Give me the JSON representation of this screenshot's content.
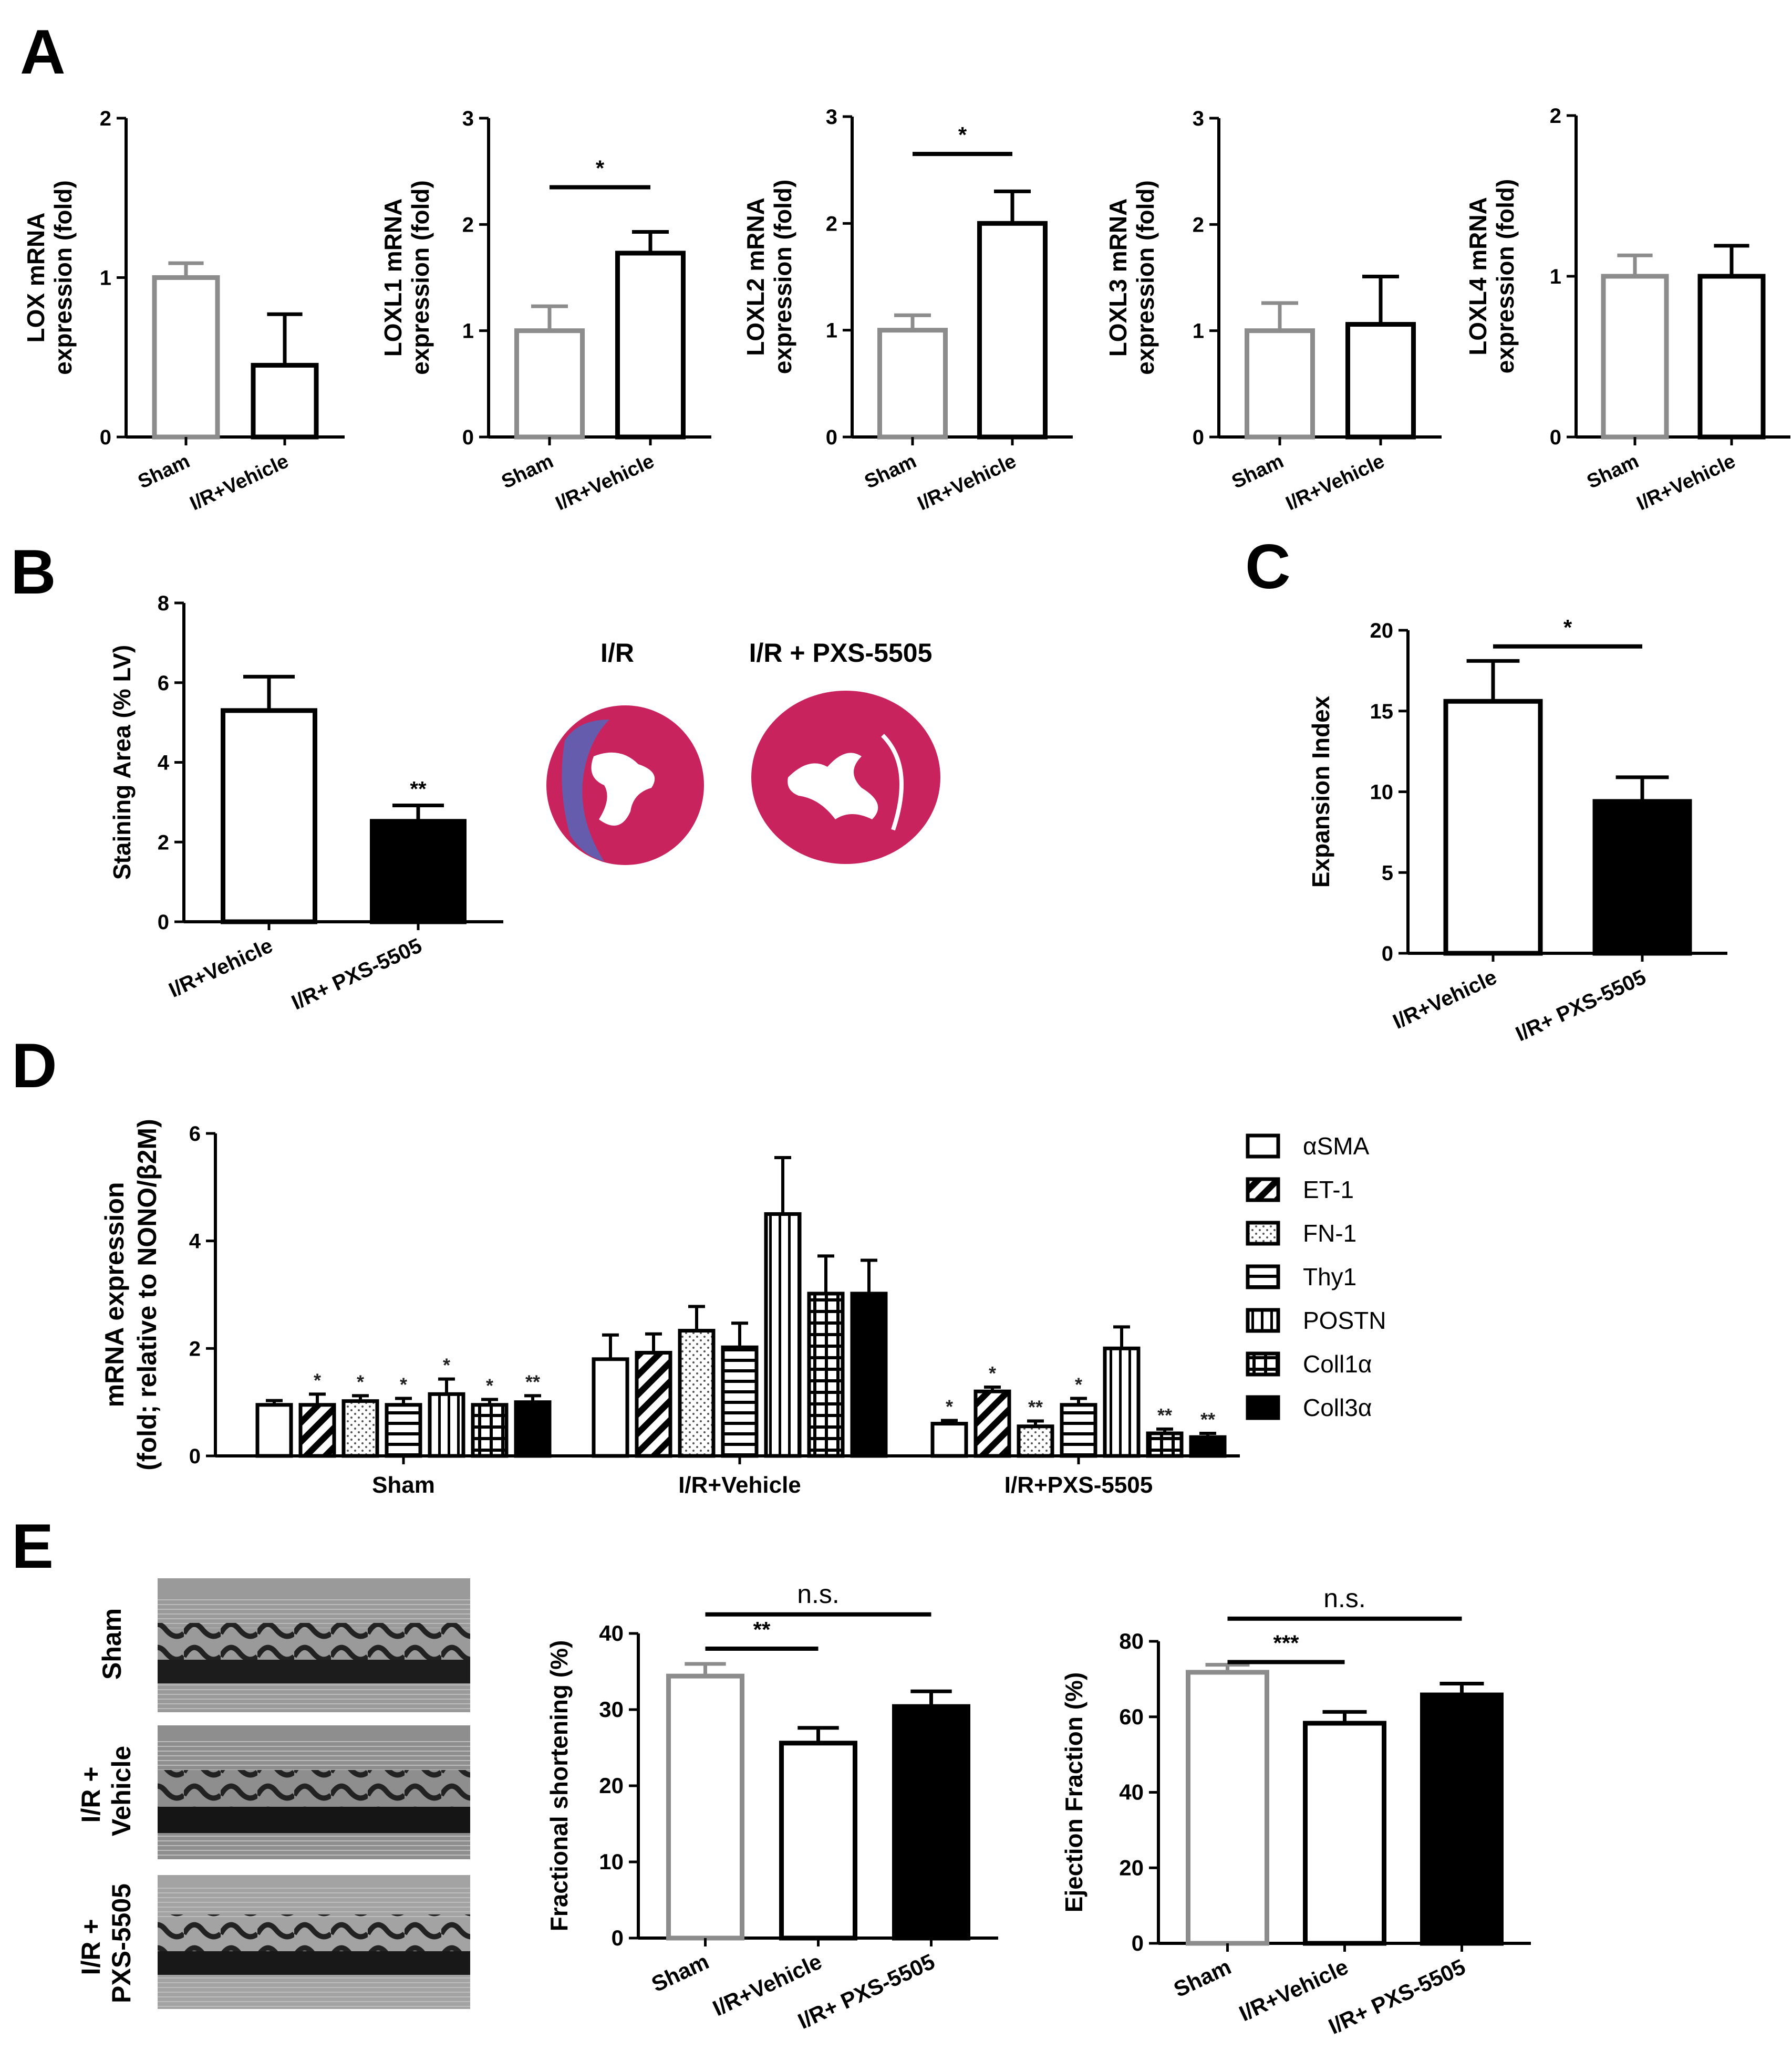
{
  "panel_letters": [
    "A",
    "B",
    "C",
    "D",
    "E"
  ],
  "colors": {
    "sham_gray": "#8c8c8c",
    "black": "#000000",
    "white": "#ffffff",
    "muscle": "#c9235d",
    "fibrosis": "#5566bb"
  },
  "images": {
    "heart_labels": [
      "I/R",
      "I/R + PXS-5505"
    ],
    "echo_labels": [
      [
        "Sham"
      ],
      [
        "I/R +",
        "Vehicle"
      ],
      [
        "I/R +",
        "PXS-5505"
      ]
    ]
  },
  "chart_data": [
    {
      "id": "A1",
      "type": "bar",
      "ylabel": [
        "LOX mRNA",
        "expression (fold)"
      ],
      "categories": [
        "Sham",
        "I/R+Vehicle"
      ],
      "values": [
        1.0,
        0.45
      ],
      "errors": [
        0.09,
        0.32
      ],
      "bar_styles": [
        "gray",
        "black"
      ],
      "yticks": [
        0,
        1,
        2
      ],
      "ylim": [
        0,
        2
      ],
      "sig": []
    },
    {
      "id": "A2",
      "type": "bar",
      "ylabel": [
        "LOXL1 mRNA",
        "expression (fold)"
      ],
      "categories": [
        "Sham",
        "I/R+Vehicle"
      ],
      "values": [
        1.0,
        1.73
      ],
      "errors": [
        0.23,
        0.2
      ],
      "bar_styles": [
        "gray",
        "black"
      ],
      "yticks": [
        0,
        1,
        2,
        3
      ],
      "ylim": [
        0,
        3
      ],
      "sig": [
        {
          "from": 0,
          "to": 1,
          "label": "*",
          "at": 2.35
        }
      ]
    },
    {
      "id": "A3",
      "type": "bar",
      "ylabel": [
        "LOXL2 mRNA",
        "expression (fold)"
      ],
      "categories": [
        "Sham",
        "I/R+Vehicle"
      ],
      "values": [
        1.0,
        2.0
      ],
      "errors": [
        0.14,
        0.3
      ],
      "bar_styles": [
        "gray",
        "black"
      ],
      "yticks": [
        0,
        1,
        2,
        3
      ],
      "ylim": [
        0,
        3
      ],
      "sig": [
        {
          "from": 0,
          "to": 1,
          "label": "*",
          "at": 2.65
        }
      ]
    },
    {
      "id": "A4",
      "type": "bar",
      "ylabel": [
        "LOXL3 mRNA",
        "expression (fold)"
      ],
      "categories": [
        "Sham",
        "I/R+Vehicle"
      ],
      "values": [
        1.0,
        1.06
      ],
      "errors": [
        0.26,
        0.45
      ],
      "bar_styles": [
        "gray",
        "black"
      ],
      "yticks": [
        0,
        1,
        2,
        3
      ],
      "ylim": [
        0,
        3
      ],
      "sig": []
    },
    {
      "id": "A5",
      "type": "bar",
      "ylabel": [
        "LOXL4 mRNA",
        "expression (fold)"
      ],
      "categories": [
        "Sham",
        "I/R+Vehicle"
      ],
      "values": [
        1.0,
        1.0
      ],
      "errors": [
        0.13,
        0.19
      ],
      "bar_styles": [
        "gray",
        "black"
      ],
      "yticks": [
        0,
        1,
        2
      ],
      "ylim": [
        0,
        2
      ],
      "sig": []
    },
    {
      "id": "B",
      "type": "bar",
      "ylabel": [
        "Staining Area (% LV)"
      ],
      "categories": [
        "I/R+Vehicle",
        "I/R+ PXS-5505"
      ],
      "values": [
        5.3,
        2.52
      ],
      "errors": [
        0.85,
        0.4
      ],
      "bar_styles": [
        "black",
        "fill"
      ],
      "yticks": [
        0,
        2,
        4,
        6,
        8
      ],
      "ylim": [
        0,
        8
      ],
      "stars": [
        "",
        "**"
      ],
      "sig": []
    },
    {
      "id": "C",
      "type": "bar",
      "ylabel": [
        "Expansion Index"
      ],
      "categories": [
        "I/R+Vehicle",
        "I/R+ PXS-5505"
      ],
      "values": [
        15.6,
        9.4
      ],
      "errors": [
        2.5,
        1.5
      ],
      "bar_styles": [
        "black",
        "fill"
      ],
      "yticks": [
        0,
        5,
        10,
        15,
        20
      ],
      "ylim": [
        0,
        20
      ],
      "sig": [
        {
          "from": 0,
          "to": 1,
          "label": "*",
          "at": 19.0
        }
      ]
    },
    {
      "id": "D",
      "type": "bar",
      "ylabel": [
        "mRNA expression",
        "(fold; relative to NONO/β2M)"
      ],
      "groups": [
        "Sham",
        "I/R+Vehicle",
        "I/R+PXS-5505"
      ],
      "series": [
        {
          "name": "αSMA",
          "pattern": "open",
          "values": [
            0.95,
            1.8,
            0.6
          ],
          "errors": [
            0.08,
            0.45,
            0.06
          ],
          "stars": [
            "",
            "",
            "*"
          ]
        },
        {
          "name": "ET-1",
          "pattern": "diag",
          "values": [
            0.95,
            1.92,
            1.2
          ],
          "errors": [
            0.2,
            0.35,
            0.08
          ],
          "stars": [
            "*",
            "",
            "*"
          ]
        },
        {
          "name": "FN-1",
          "pattern": "dots",
          "values": [
            1.02,
            2.33,
            0.55
          ],
          "errors": [
            0.1,
            0.45,
            0.1
          ],
          "stars": [
            "*",
            "",
            "**"
          ]
        },
        {
          "name": "Thy1",
          "pattern": "hlines",
          "values": [
            0.95,
            2.02,
            0.95
          ],
          "errors": [
            0.12,
            0.45,
            0.12
          ],
          "stars": [
            "*",
            "",
            "*"
          ]
        },
        {
          "name": "POSTN",
          "pattern": "vlines",
          "values": [
            1.15,
            4.5,
            2.0
          ],
          "errors": [
            0.28,
            1.05,
            0.4
          ],
          "stars": [
            "*",
            "",
            ""
          ]
        },
        {
          "name": "Coll1α",
          "pattern": "grid",
          "values": [
            0.95,
            3.02,
            0.42
          ],
          "errors": [
            0.1,
            0.7,
            0.08
          ],
          "stars": [
            "*",
            "",
            "**"
          ]
        },
        {
          "name": "Coll3α",
          "pattern": "solid",
          "values": [
            1.0,
            3.02,
            0.35
          ],
          "errors": [
            0.12,
            0.62,
            0.07
          ],
          "stars": [
            "**",
            "",
            "**"
          ]
        }
      ],
      "yticks": [
        0,
        2,
        4,
        6
      ],
      "ylim": [
        0,
        6
      ],
      "legend": "right"
    },
    {
      "id": "E1",
      "type": "bar",
      "ylabel": [
        "Fractional shortening  (%)"
      ],
      "categories": [
        "Sham",
        "I/R+Vehicle",
        "I/R+ PXS-5505"
      ],
      "values": [
        34.4,
        25.6,
        30.4
      ],
      "errors": [
        1.6,
        2.0,
        2.0
      ],
      "bar_styles": [
        "gray",
        "black",
        "fill"
      ],
      "yticks": [
        0,
        10,
        20,
        30,
        40
      ],
      "ylim": [
        0,
        40
      ],
      "sig": [
        {
          "from": 0,
          "to": 1,
          "label": "**",
          "at": 38.0
        },
        {
          "from": 0,
          "to": 2,
          "label": "n.s.",
          "at": 42.5
        }
      ]
    },
    {
      "id": "E2",
      "type": "bar",
      "ylabel": [
        "Ejection Fraction (%)"
      ],
      "categories": [
        "Sham",
        "I/R+Vehicle",
        "I/R+ PXS-5505"
      ],
      "values": [
        71.8,
        58.3,
        65.8
      ],
      "errors": [
        2.0,
        3.0,
        3.0
      ],
      "bar_styles": [
        "gray",
        "black",
        "fill"
      ],
      "yticks": [
        0,
        20,
        40,
        60,
        80
      ],
      "ylim": [
        0,
        80
      ],
      "sig": [
        {
          "from": 0,
          "to": 1,
          "label": "***",
          "at": 74.5
        },
        {
          "from": 0,
          "to": 2,
          "label": "n.s.",
          "at": 86.0
        }
      ]
    }
  ]
}
